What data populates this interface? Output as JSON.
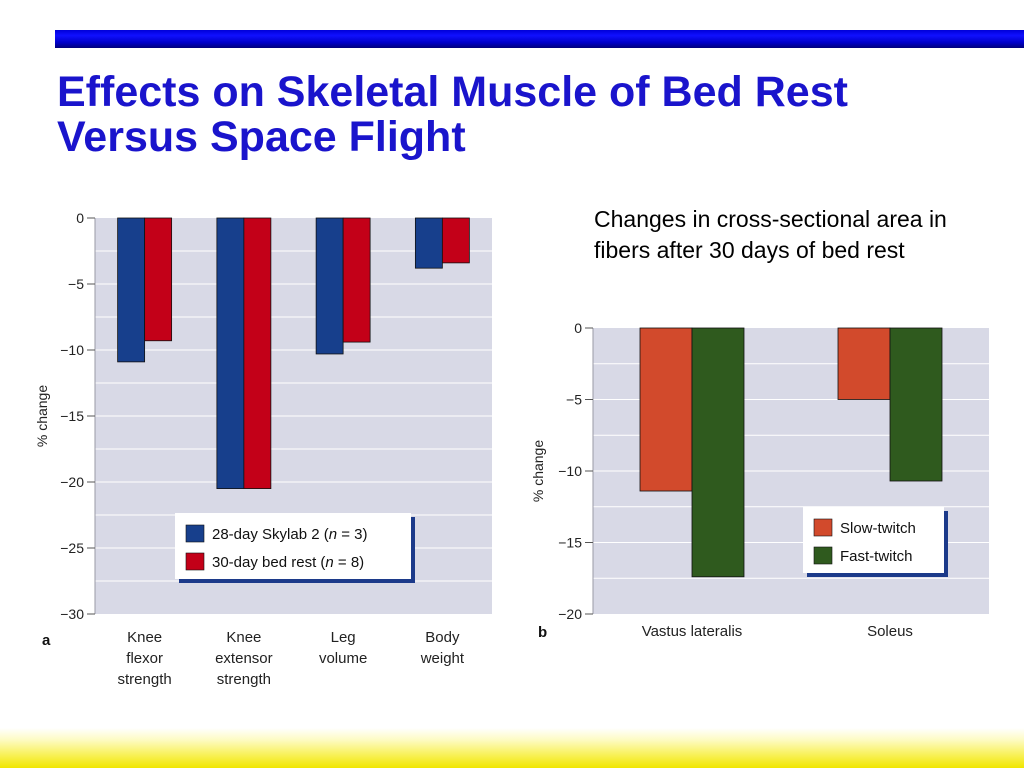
{
  "slide": {
    "title": "Effects on Skeletal Muscle of Bed Rest Versus Space Flight",
    "caption": "Changes in cross-sectional area in fibers after 30 days of bed rest"
  },
  "colors": {
    "title": "#1a14cc",
    "plot_bg": "#d8d9e6",
    "skylab": "#173f8c",
    "bed_rest": "#c30018",
    "slow_twitch": "#d24a2c",
    "fast_twitch": "#2f5a1e"
  },
  "chart_data": [
    {
      "panel": "a",
      "type": "bar",
      "ylabel": "% change",
      "ylim": [
        -30,
        0
      ],
      "yticks": [
        0,
        -5,
        -10,
        -15,
        -20,
        -25,
        -30
      ],
      "ytick_labels": [
        "0",
        "−5",
        "−10",
        "−15",
        "−20",
        "−25",
        "−30"
      ],
      "categories": [
        [
          "Knee",
          "flexor",
          "strength"
        ],
        [
          "Knee",
          "extensor",
          "strength"
        ],
        [
          "Leg",
          "volume"
        ],
        [
          "Body",
          "weight"
        ]
      ],
      "series": [
        {
          "name": "28-day Skylab 2 (n = 3)",
          "legend_pre": "28-day Skylab 2 (",
          "legend_n": "n",
          "legend_post": " = 3)",
          "values": [
            -10.9,
            -20.5,
            -10.3,
            -3.8
          ]
        },
        {
          "name": "30-day bed rest (n = 8)",
          "legend_pre": "30-day bed rest (",
          "legend_n": "n",
          "legend_post": " = 8)",
          "values": [
            -9.3,
            -20.5,
            -9.4,
            -3.4
          ]
        }
      ],
      "legend_position": "bottom-right",
      "grid": true
    },
    {
      "panel": "b",
      "type": "bar",
      "ylabel": "% change",
      "ylim": [
        -20,
        0
      ],
      "yticks": [
        0,
        -5,
        -10,
        -15,
        -20
      ],
      "ytick_labels": [
        "0",
        "−5",
        "−10",
        "−15",
        "−20"
      ],
      "categories": [
        [
          "Vastus lateralis"
        ],
        [
          "Soleus"
        ]
      ],
      "series": [
        {
          "name": "Slow-twitch",
          "legend_pre": "Slow-twitch",
          "legend_n": "",
          "legend_post": "",
          "values": [
            -11.4,
            -5.0
          ]
        },
        {
          "name": "Fast-twitch",
          "legend_pre": "Fast-twitch",
          "legend_n": "",
          "legend_post": "",
          "values": [
            -17.4,
            -10.7
          ]
        }
      ],
      "legend_position": "bottom-right",
      "grid": true
    }
  ]
}
